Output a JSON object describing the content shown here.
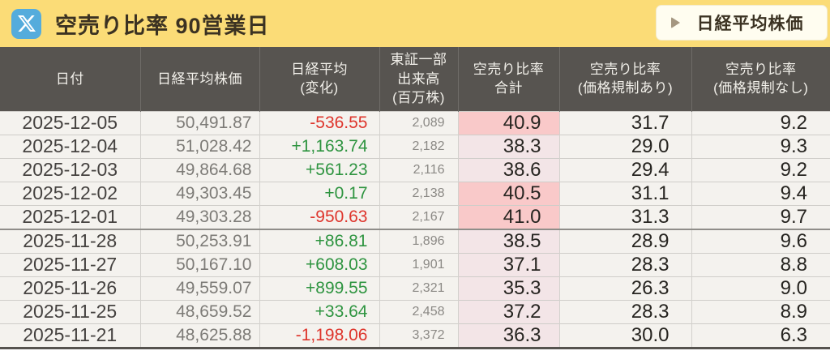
{
  "topbar": {
    "title": "空売り比率 90営業日",
    "button_label": "日経平均株価"
  },
  "table": {
    "columns": [
      {
        "key": "date",
        "lines": [
          "日付"
        ]
      },
      {
        "key": "nikkei",
        "lines": [
          "日経平均株価"
        ]
      },
      {
        "key": "change",
        "lines": [
          "日経平均",
          "(変化)"
        ]
      },
      {
        "key": "volume",
        "lines": [
          "東証一部",
          "出来高",
          "(百万株)"
        ]
      },
      {
        "key": "ratio_total",
        "lines": [
          "空売り比率",
          "合計"
        ]
      },
      {
        "key": "ratio_reg",
        "lines": [
          "空売り比率",
          "(価格規制あり)"
        ]
      },
      {
        "key": "ratio_unreg",
        "lines": [
          "空売り比率",
          "(価格規制なし)"
        ]
      }
    ],
    "rows": [
      {
        "date": "2025-12-05",
        "nikkei": "50,491.87",
        "change": "-536.55",
        "trend": "down",
        "volume": "2,089",
        "ratio_total": "40.9",
        "ratio_total_highlight": "strong",
        "ratio_reg": "31.7",
        "ratio_unreg": "9.2",
        "week_start": false
      },
      {
        "date": "2025-12-04",
        "nikkei": "51,028.42",
        "change": "+1,163.74",
        "trend": "up",
        "volume": "2,182",
        "ratio_total": "38.3",
        "ratio_total_highlight": "light",
        "ratio_reg": "29.0",
        "ratio_unreg": "9.3",
        "week_start": false
      },
      {
        "date": "2025-12-03",
        "nikkei": "49,864.68",
        "change": "+561.23",
        "trend": "up",
        "volume": "2,116",
        "ratio_total": "38.6",
        "ratio_total_highlight": "light",
        "ratio_reg": "29.4",
        "ratio_unreg": "9.2",
        "week_start": false
      },
      {
        "date": "2025-12-02",
        "nikkei": "49,303.45",
        "change": "+0.17",
        "trend": "up",
        "volume": "2,138",
        "ratio_total": "40.5",
        "ratio_total_highlight": "strong",
        "ratio_reg": "31.1",
        "ratio_unreg": "9.4",
        "week_start": false
      },
      {
        "date": "2025-12-01",
        "nikkei": "49,303.28",
        "change": "-950.63",
        "trend": "down",
        "volume": "2,167",
        "ratio_total": "41.0",
        "ratio_total_highlight": "strong",
        "ratio_reg": "31.3",
        "ratio_unreg": "9.7",
        "week_start": false
      },
      {
        "date": "2025-11-28",
        "nikkei": "50,253.91",
        "change": "+86.81",
        "trend": "up",
        "volume": "1,896",
        "ratio_total": "38.5",
        "ratio_total_highlight": "light",
        "ratio_reg": "28.9",
        "ratio_unreg": "9.6",
        "week_start": true
      },
      {
        "date": "2025-11-27",
        "nikkei": "50,167.10",
        "change": "+608.03",
        "trend": "up",
        "volume": "1,901",
        "ratio_total": "37.1",
        "ratio_total_highlight": "light",
        "ratio_reg": "28.3",
        "ratio_unreg": "8.8",
        "week_start": false
      },
      {
        "date": "2025-11-26",
        "nikkei": "49,559.07",
        "change": "+899.55",
        "trend": "up",
        "volume": "2,321",
        "ratio_total": "35.3",
        "ratio_total_highlight": "light",
        "ratio_reg": "26.3",
        "ratio_unreg": "9.0",
        "week_start": false
      },
      {
        "date": "2025-11-25",
        "nikkei": "48,659.52",
        "change": "+33.64",
        "trend": "up",
        "volume": "2,458",
        "ratio_total": "37.2",
        "ratio_total_highlight": "light",
        "ratio_reg": "28.3",
        "ratio_unreg": "8.9",
        "week_start": false
      },
      {
        "date": "2025-11-21",
        "nikkei": "48,625.88",
        "change": "-1,198.06",
        "trend": "down",
        "volume": "3,372",
        "ratio_total": "36.3",
        "ratio_total_highlight": "light",
        "ratio_reg": "30.0",
        "ratio_unreg": "6.3",
        "week_start": false
      }
    ]
  },
  "icons": {
    "x_logo": "x-logo-icon",
    "triangle": "play-right-icon"
  },
  "colors": {
    "topbar_bg": "#FBDC77",
    "x_icon_bg": "#55ACDC",
    "title_text": "#3B3222",
    "button_bg": "#FFFDF0",
    "header_bg": "#575450",
    "header_text": "#F2F0EA",
    "row_bg": "#F4F2EE",
    "up_green": "#2E9440",
    "down_red": "#DE352C",
    "pink_strong": "#F9C9C9",
    "pink_light": "#F3E5E7"
  }
}
